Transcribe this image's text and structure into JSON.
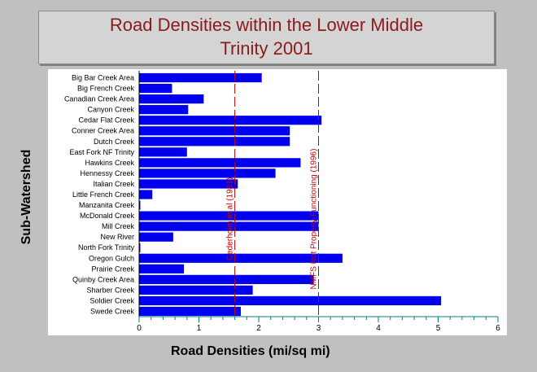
{
  "chart_data": {
    "type": "bar",
    "orientation": "horizontal",
    "title": "Road Densities within the Lower Middle Trinity 2001",
    "title_lines": [
      "Road Densities within the Lower Middle",
      "Trinity 2001"
    ],
    "xlabel": "Road Densities (mi/sq mi)",
    "ylabel": "Sub-Watershed",
    "xlim": [
      0,
      6
    ],
    "xticks": [
      0,
      1,
      2,
      3,
      4,
      5,
      6
    ],
    "bar_color": "#0000ee",
    "categories": [
      "Big Bar Creek Area",
      "Big French Creek",
      "Canadian Creek Area",
      "Canyon Creek",
      "Cedar Flat Creek",
      "Conner Creek Area",
      "Dutch Creek",
      "East Fork NF Trinity",
      "Hawkins Creek",
      "Hennessy Creek",
      "Italian Creek",
      "Little French Creek",
      "Manzanita Creek",
      "McDonald Creek",
      "Mill Creek",
      "New River",
      "North Fork Trinity",
      "Oregon Gulch",
      "Prairie Creek",
      "Quinby Creek Area",
      "Sharber Creek",
      "Soldier Creek",
      "Swede Creek"
    ],
    "values": [
      2.05,
      0.55,
      1.08,
      0.82,
      3.05,
      2.52,
      2.52,
      0.8,
      2.7,
      2.28,
      1.65,
      0.22,
      0.02,
      3.0,
      3.0,
      0.57,
      0.02,
      3.4,
      0.75,
      2.92,
      1.9,
      5.05,
      1.7
    ],
    "reference_lines": [
      {
        "value": 1.6,
        "label": "Cederholm et al (1981)",
        "color": "#cc0000"
      },
      {
        "value": 3.0,
        "label": "NMFS Not Properly Functioning (1996)",
        "color": "#cc0000"
      }
    ],
    "grid": false
  }
}
